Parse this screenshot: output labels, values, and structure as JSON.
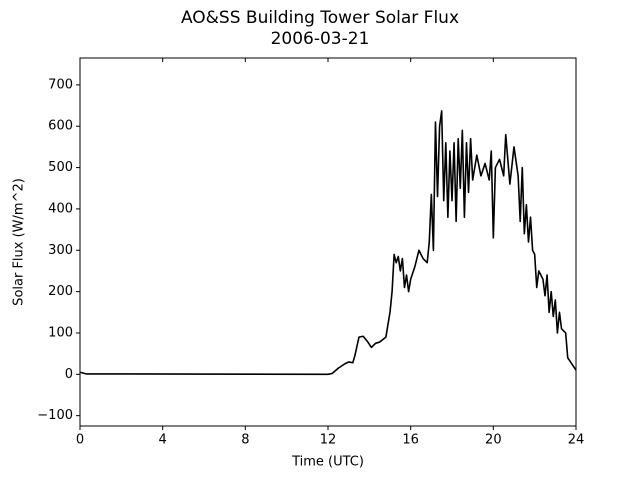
{
  "chart_data": {
    "type": "line",
    "title": "AO&SS Building Tower Solar Flux",
    "subtitle": "2006-03-21",
    "x_label": "Time (UTC)",
    "y_label": "Solar Flux (W/m^2)",
    "xlim": [
      0,
      24
    ],
    "xticks": [
      0,
      4,
      8,
      12,
      16,
      20,
      24
    ],
    "ylim": [
      -125,
      765
    ],
    "yticks": [
      {
        "value": -100,
        "label": "−100"
      },
      0,
      100,
      200,
      300,
      400,
      500,
      600,
      700
    ],
    "x": [
      0,
      0.3,
      12.0,
      12.2,
      12.5,
      12.8,
      13.0,
      13.2,
      13.3,
      13.5,
      13.7,
      13.9,
      14.1,
      14.3,
      14.5,
      14.8,
      15.0,
      15.1,
      15.2,
      15.3,
      15.4,
      15.5,
      15.6,
      15.7,
      15.8,
      15.9,
      16.0,
      16.2,
      16.4,
      16.6,
      16.8,
      16.9,
      17.0,
      17.1,
      17.2,
      17.3,
      17.4,
      17.5,
      17.6,
      17.7,
      17.8,
      17.9,
      18.0,
      18.1,
      18.2,
      18.3,
      18.4,
      18.5,
      18.6,
      18.7,
      18.8,
      18.9,
      19.0,
      19.2,
      19.4,
      19.6,
      19.8,
      19.9,
      20.0,
      20.1,
      20.3,
      20.5,
      20.6,
      20.8,
      21.0,
      21.2,
      21.3,
      21.4,
      21.5,
      21.6,
      21.7,
      21.8,
      21.9,
      22.0,
      22.1,
      22.2,
      22.4,
      22.5,
      22.6,
      22.7,
      22.8,
      22.9,
      23.0,
      23.1,
      23.2,
      23.3,
      23.5,
      23.6,
      23.8,
      24.0
    ],
    "series": [
      {
        "name": "Solar Flux",
        "color": "#000000",
        "values": [
          5,
          1,
          0,
          2,
          15,
          25,
          30,
          28,
          45,
          90,
          92,
          80,
          65,
          75,
          78,
          90,
          150,
          200,
          290,
          270,
          285,
          250,
          280,
          210,
          240,
          200,
          230,
          260,
          300,
          280,
          270,
          320,
          435,
          300,
          610,
          430,
          600,
          637,
          420,
          560,
          380,
          540,
          420,
          560,
          370,
          570,
          450,
          590,
          380,
          560,
          440,
          570,
          470,
          530,
          480,
          510,
          470,
          540,
          330,
          500,
          520,
          480,
          580,
          460,
          550,
          480,
          370,
          500,
          340,
          410,
          320,
          380,
          300,
          290,
          210,
          250,
          230,
          190,
          240,
          150,
          200,
          140,
          180,
          100,
          150,
          110,
          100,
          40,
          25,
          10
        ]
      }
    ]
  }
}
